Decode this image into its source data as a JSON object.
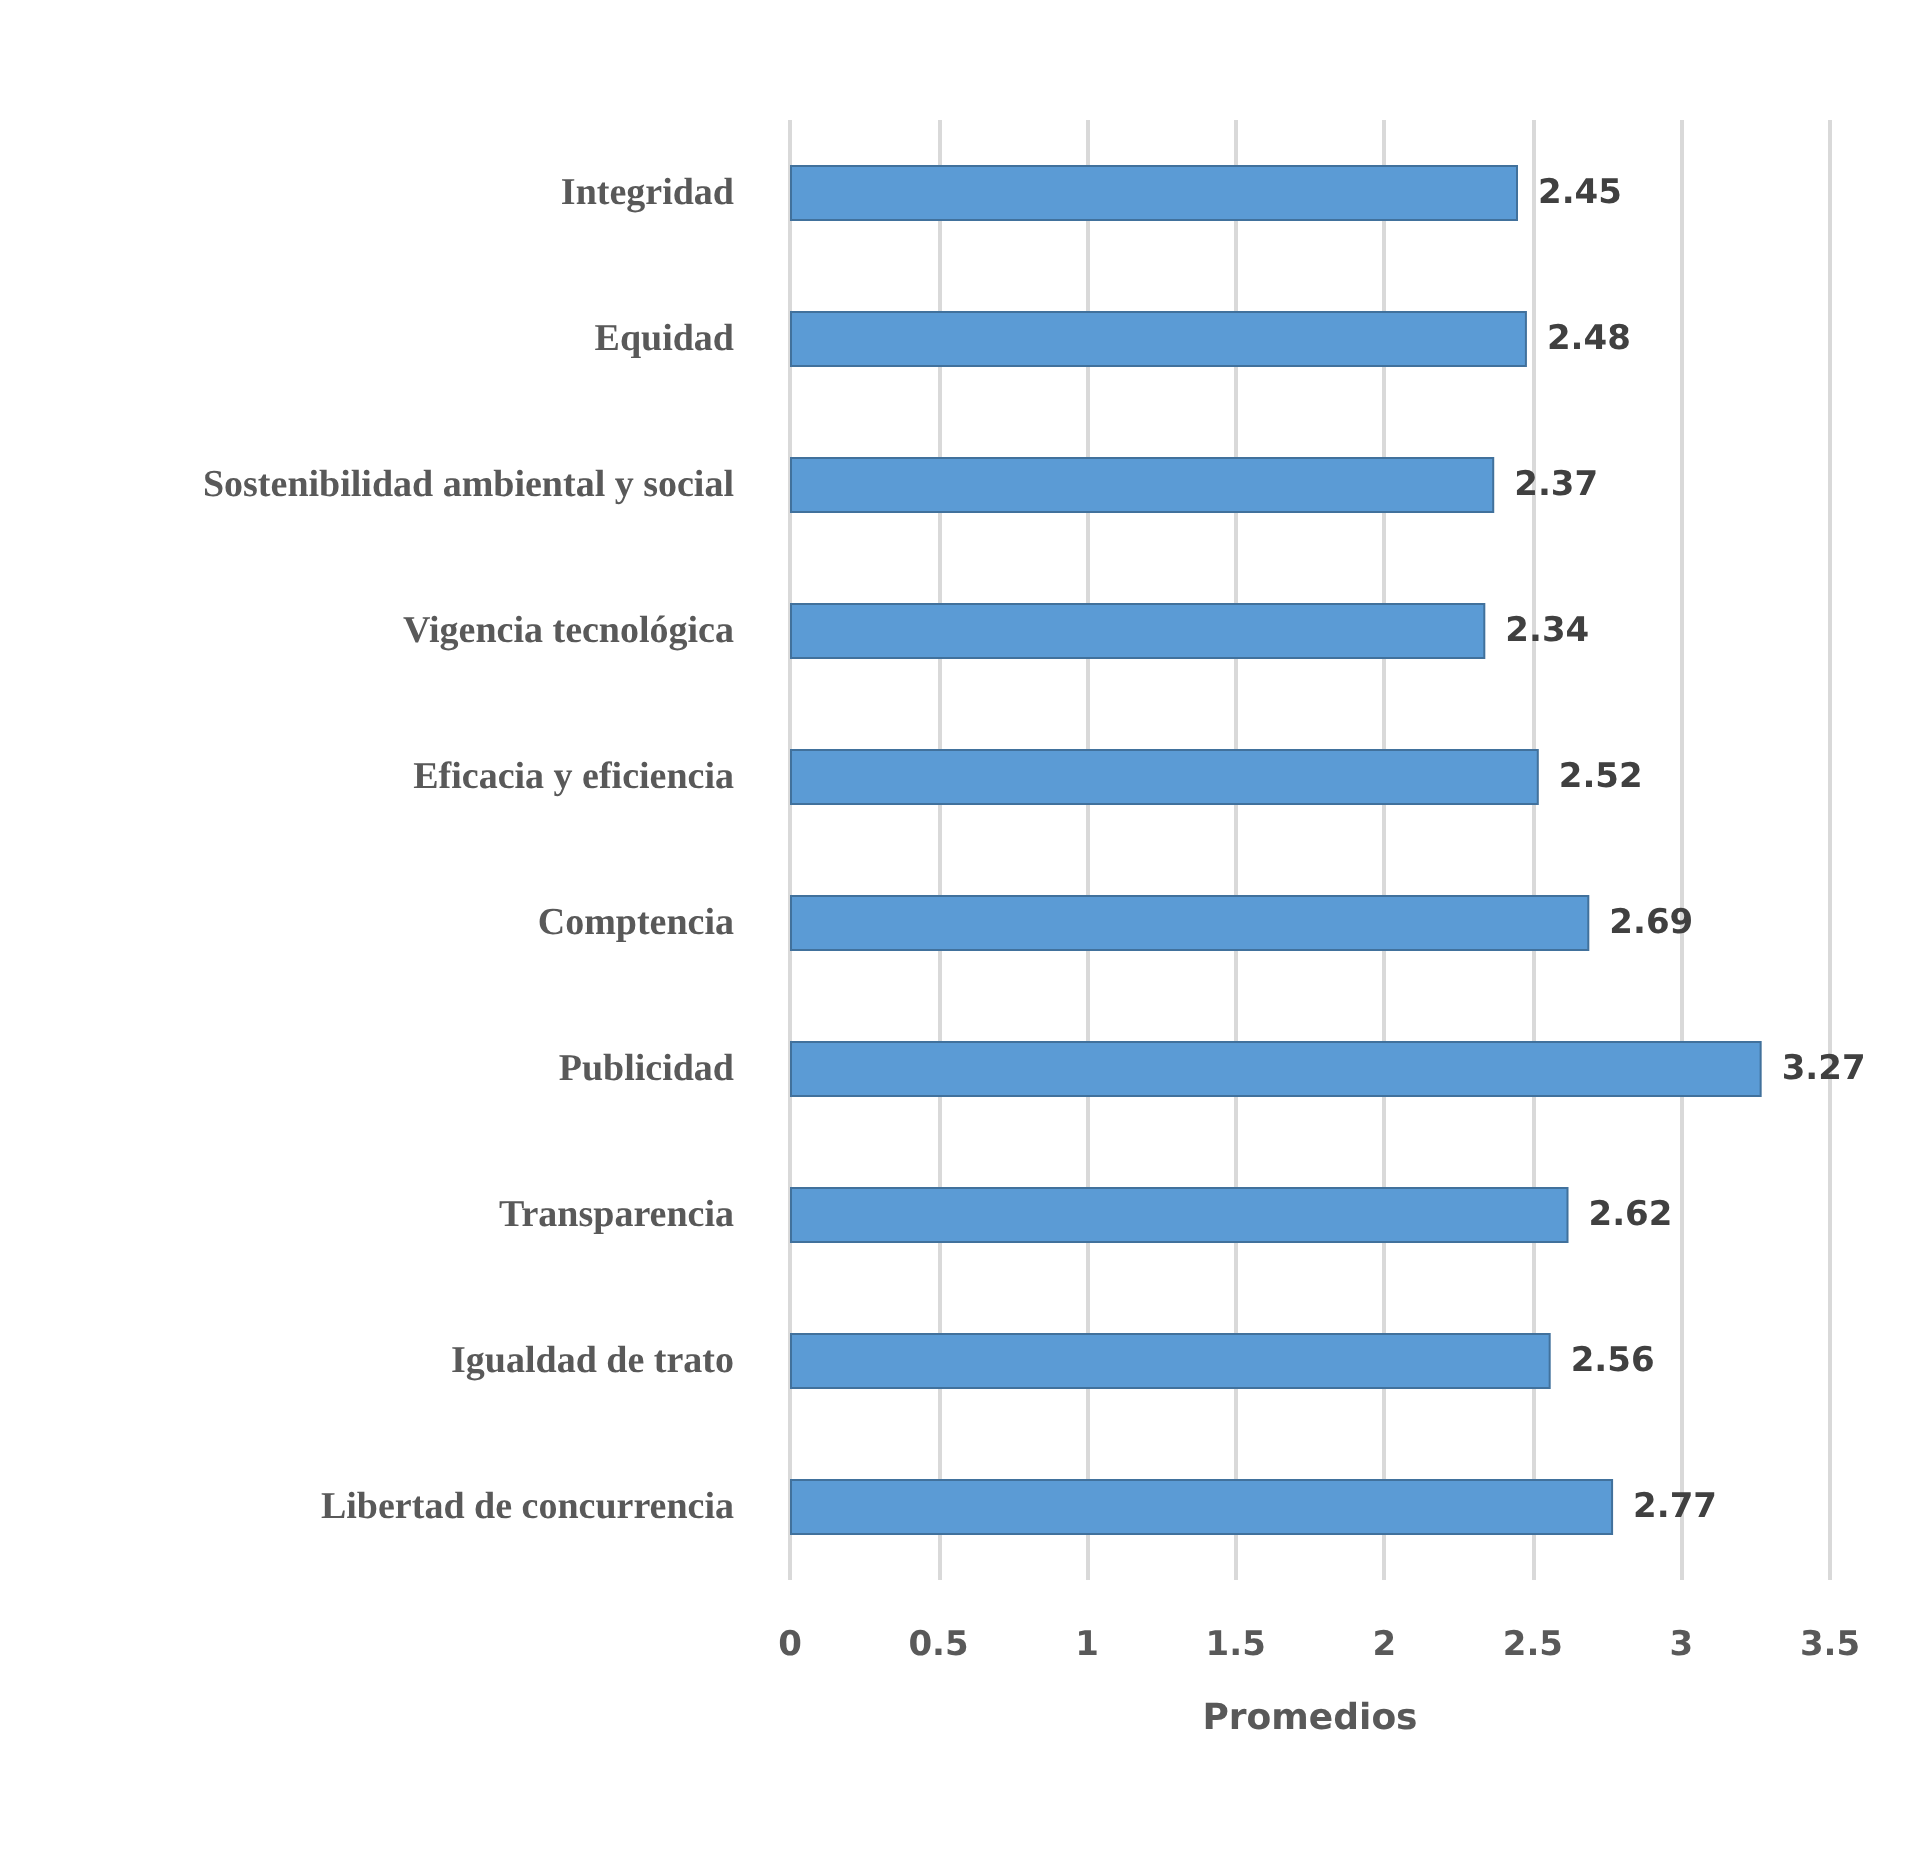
{
  "chart_data": {
    "type": "bar",
    "orientation": "horizontal",
    "xlabel": "Promedios",
    "categories": [
      "Integridad",
      "Equidad",
      "Sostenibilidad ambiental y social",
      "Vigencia tecnológica",
      "Eficacia y eficiencia",
      "Comptencia",
      "Publicidad",
      "Transparencia",
      "Igualdad de trato",
      "Libertad de concurrencia"
    ],
    "values": [
      2.45,
      2.48,
      2.37,
      2.34,
      2.52,
      2.69,
      3.27,
      2.62,
      2.56,
      2.77
    ],
    "color": "#5b9bd5",
    "xlim": [
      0,
      3.5
    ],
    "xticks": [
      0,
      0.5,
      1,
      1.5,
      2,
      2.5,
      3,
      3.5
    ],
    "grid": "x",
    "data_labels": true
  }
}
